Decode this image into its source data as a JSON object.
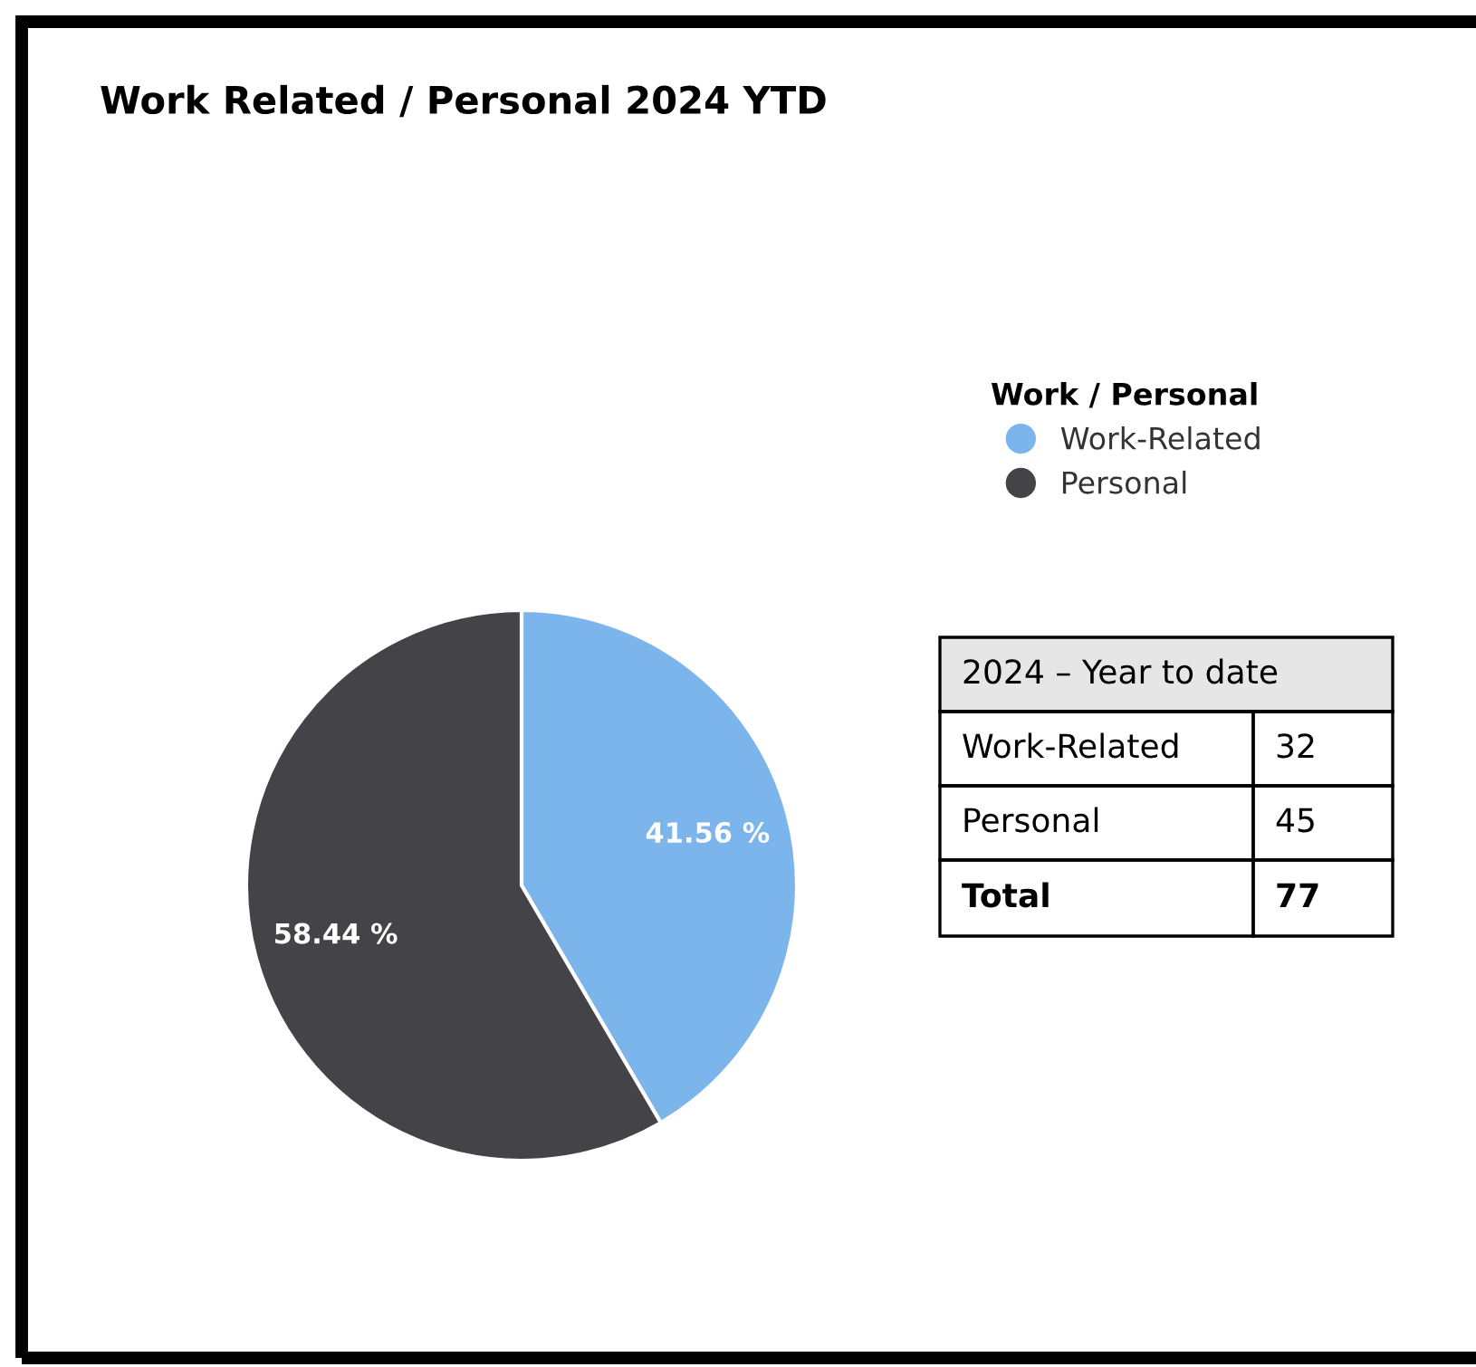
{
  "chart_data": {
    "type": "pie",
    "title": "Work Related / Personal 2024 YTD",
    "legend_title": "Work / Personal",
    "legend": "top right",
    "categories": [
      "Work-Related",
      "Personal"
    ],
    "values": [
      41.56,
      58.44
    ],
    "colors": [
      "#7cb5ec",
      "#434348"
    ],
    "value_labels": [
      "41.56 %",
      "58.44 %"
    ],
    "annotations": [
      "2024 – Year to date",
      "32",
      "45",
      "Total",
      "77"
    ]
  }
}
